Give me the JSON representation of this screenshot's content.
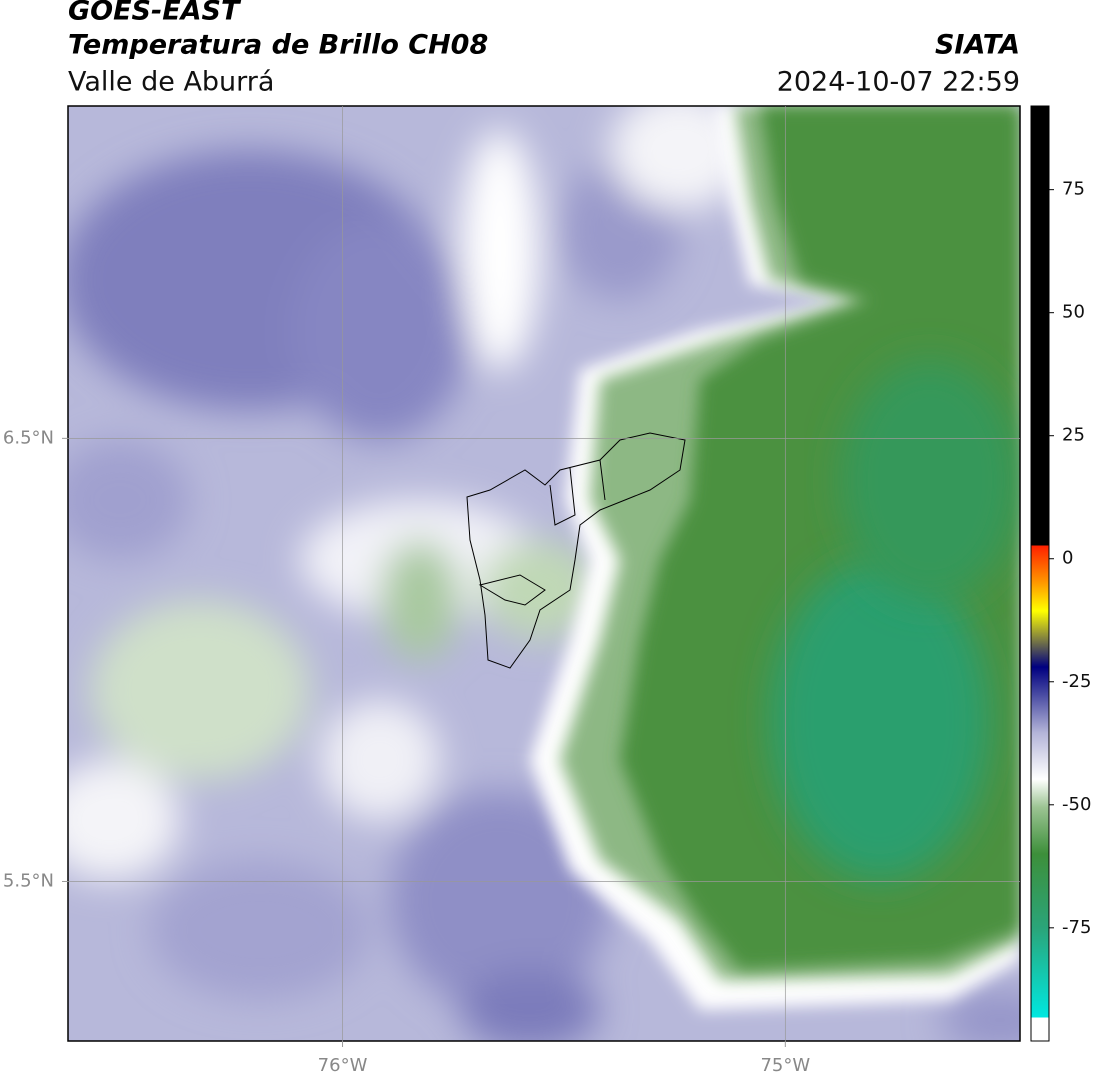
{
  "header": {
    "title": "GOES-EAST",
    "subtitle": "Temperatura de Brillo CH08",
    "region": "Valle de Aburrá",
    "source": "SIATA",
    "timestamp": "2024-10-07 22:59"
  },
  "map": {
    "lon_range": [
      -76.62,
      -74.47
    ],
    "lat_range": [
      5.14,
      7.25
    ],
    "lon_ticks": [
      {
        "value": -76,
        "label": "76°W"
      },
      {
        "value": -75,
        "label": "75°W"
      }
    ],
    "lat_ticks": [
      {
        "value": 6.5,
        "label": "6.5°N"
      },
      {
        "value": 5.5,
        "label": "5.5°N"
      }
    ]
  },
  "colorbar": {
    "range": [
      -98,
      92
    ],
    "ticks": [
      75,
      50,
      25,
      0,
      -25,
      -50,
      -75
    ]
  }
}
